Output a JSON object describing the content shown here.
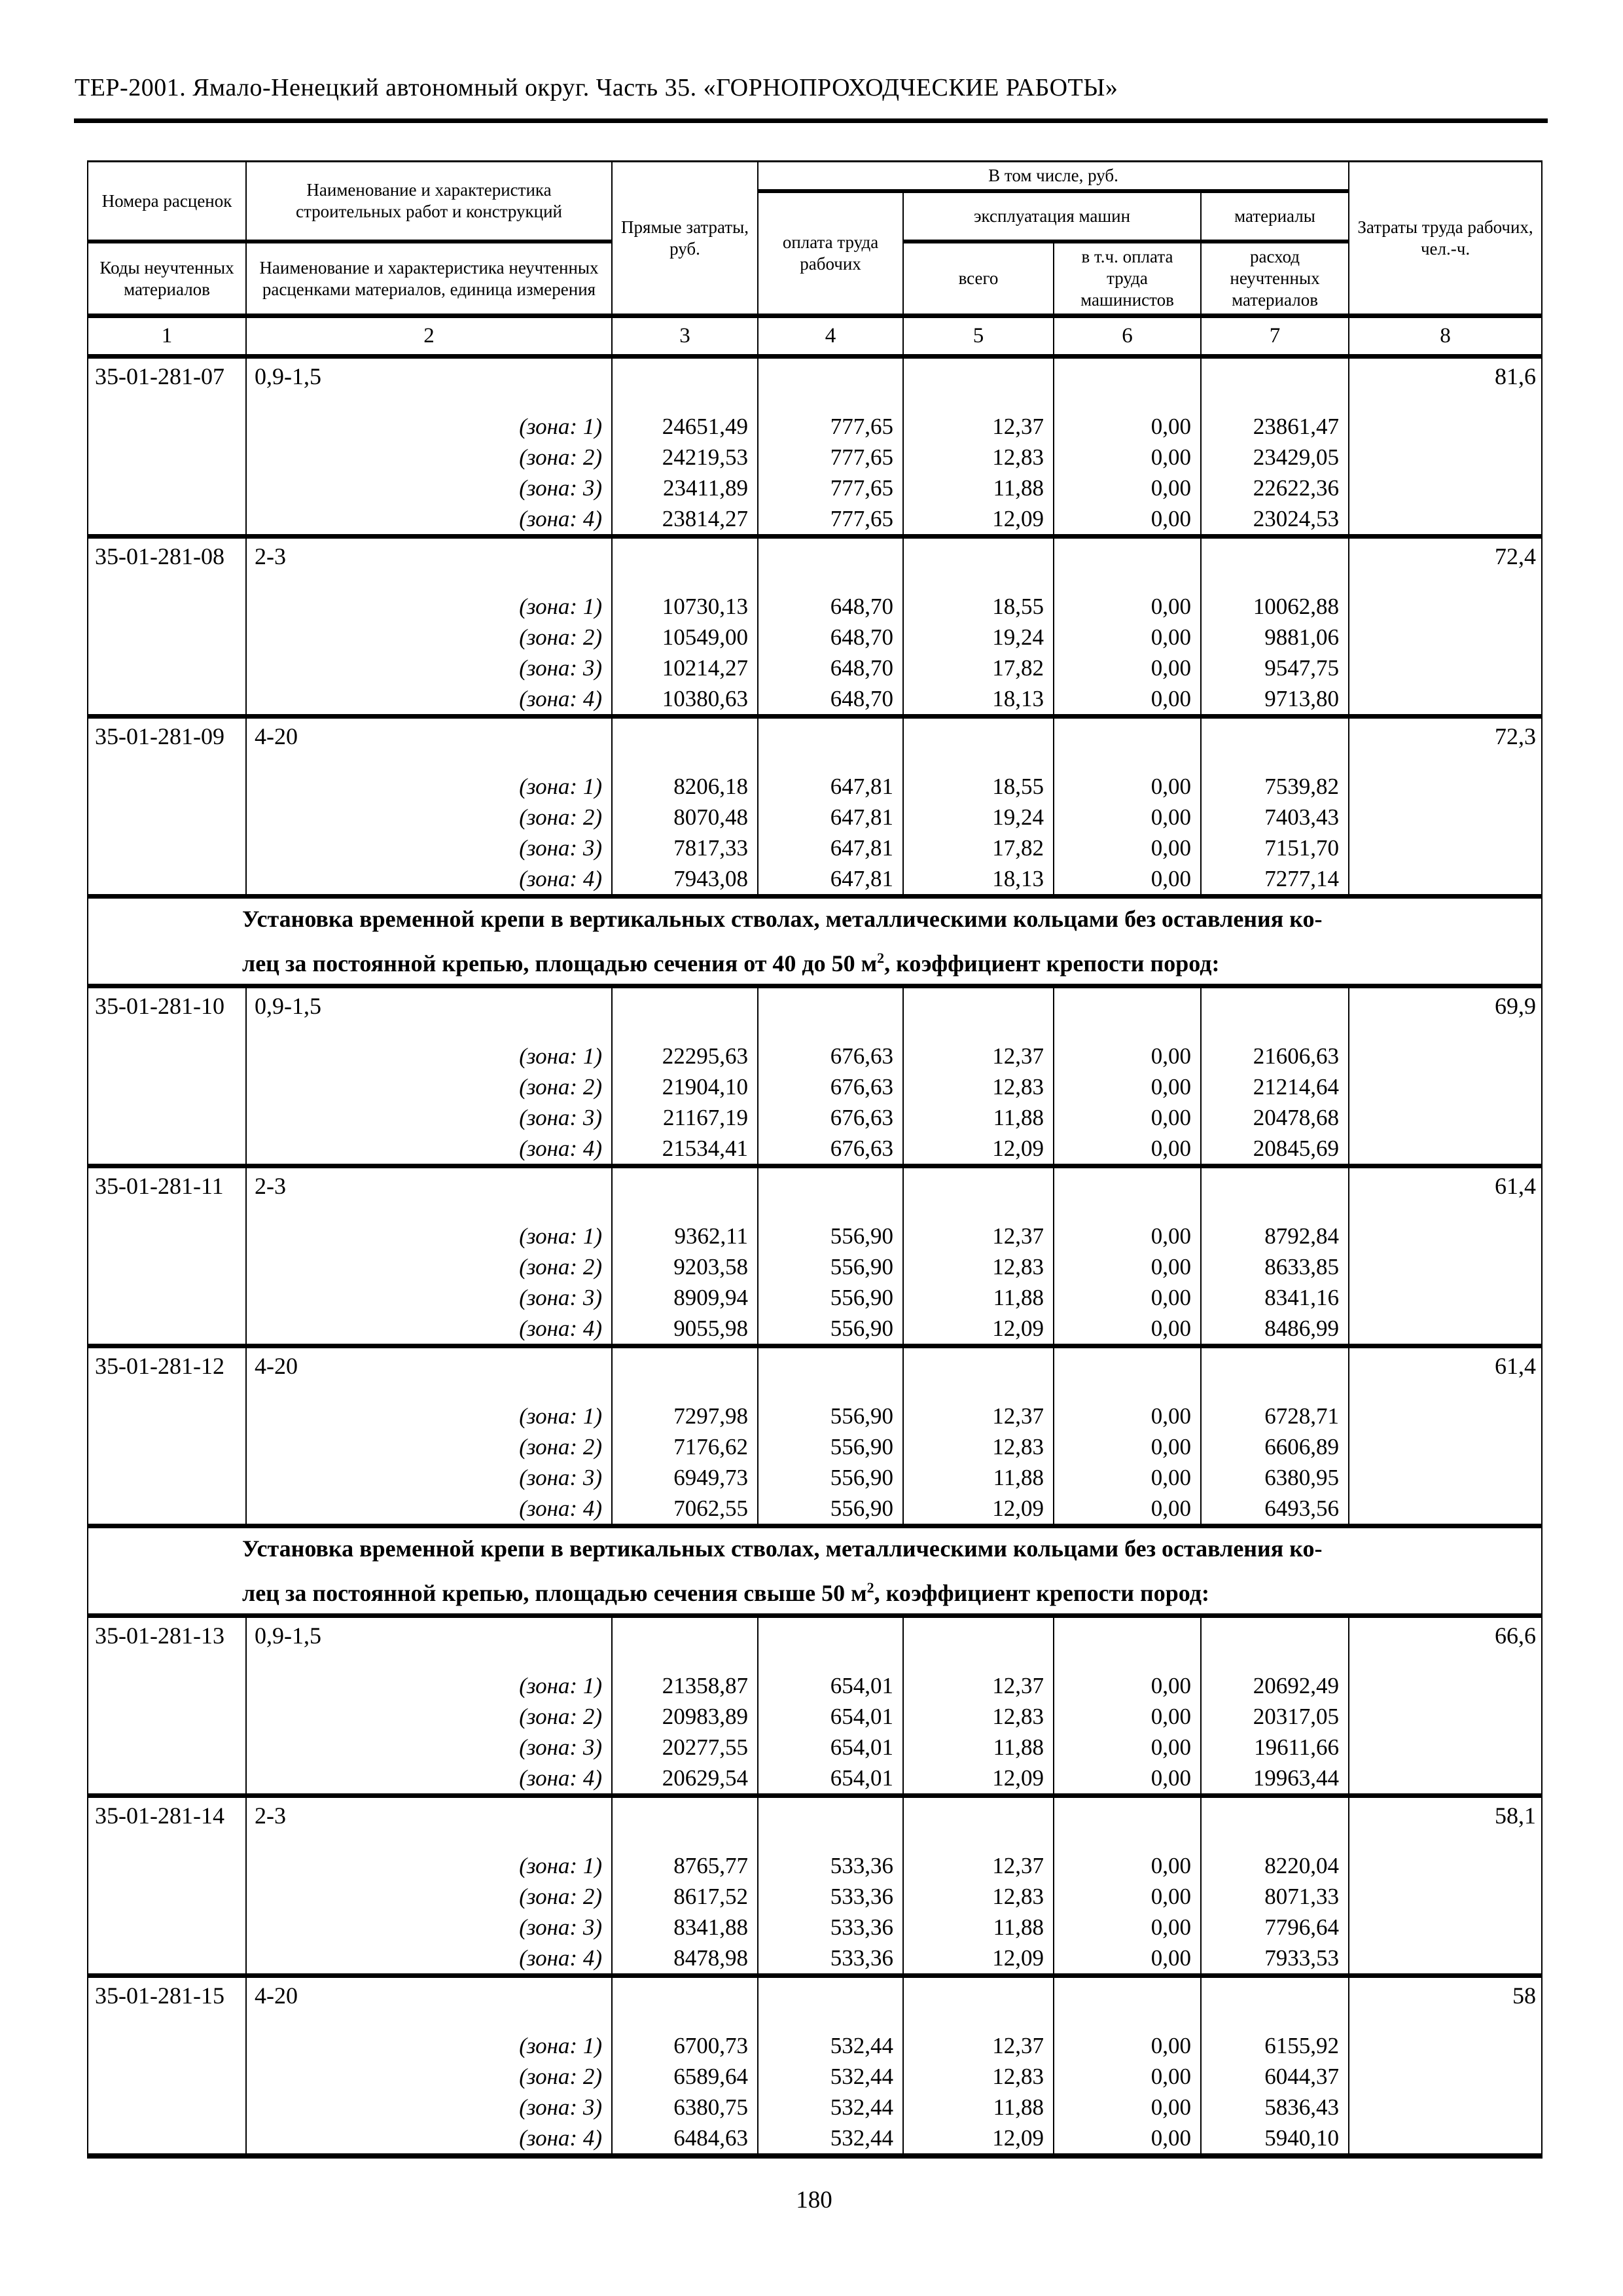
{
  "page": {
    "title": "ТЕР-2001. Ямало-Ненецкий автономный округ. Часть 35. «ГОРНОПРОХОДЧЕСКИЕ РАБОТЫ»",
    "page_number": "180"
  },
  "table": {
    "header": {
      "rates_numbers": "Номера расценок",
      "codes_materials": "Коды неучтенных материалов",
      "works_name": "Наименование и характеристика строительных работ и конструкций",
      "materials_name": "Наименование и характеристика неучтенных расценками материалов, единица измерения",
      "direct_costs": "Прямые затраты, руб.",
      "including": "В том числе, руб.",
      "workers_pay": "оплата труда рабочих",
      "machines": "эксплуатация машин",
      "machines_total": "всего",
      "machinists_pay": "в т.ч. оплата труда машинистов",
      "materials": "материалы",
      "materials_consumption": "расход неучтенных материалов",
      "labor_costs": "Затраты труда рабочих, чел.-ч.",
      "column_numbers": [
        "1",
        "2",
        "3",
        "4",
        "5",
        "6",
        "7",
        "8"
      ]
    },
    "body": [
      {
        "type": "group",
        "code": "35-01-281-07",
        "characteristic": "0,9-1,5",
        "labor": "81,6",
        "zones": [
          {
            "label": "(зона: 1)",
            "values": [
              "24651,49",
              "777,65",
              "12,37",
              "0,00",
              "23861,47"
            ]
          },
          {
            "label": "(зона: 2)",
            "values": [
              "24219,53",
              "777,65",
              "12,83",
              "0,00",
              "23429,05"
            ]
          },
          {
            "label": "(зона: 3)",
            "values": [
              "23411,89",
              "777,65",
              "11,88",
              "0,00",
              "22622,36"
            ]
          },
          {
            "label": "(зона: 4)",
            "values": [
              "23814,27",
              "777,65",
              "12,09",
              "0,00",
              "23024,53"
            ]
          }
        ]
      },
      {
        "type": "group",
        "code": "35-01-281-08",
        "characteristic": "2-3",
        "labor": "72,4",
        "zones": [
          {
            "label": "(зона: 1)",
            "values": [
              "10730,13",
              "648,70",
              "18,55",
              "0,00",
              "10062,88"
            ]
          },
          {
            "label": "(зона: 2)",
            "values": [
              "10549,00",
              "648,70",
              "19,24",
              "0,00",
              "9881,06"
            ]
          },
          {
            "label": "(зона: 3)",
            "values": [
              "10214,27",
              "648,70",
              "17,82",
              "0,00",
              "9547,75"
            ]
          },
          {
            "label": "(зона: 4)",
            "values": [
              "10380,63",
              "648,70",
              "18,13",
              "0,00",
              "9713,80"
            ]
          }
        ]
      },
      {
        "type": "group",
        "code": "35-01-281-09",
        "characteristic": "4-20",
        "labor": "72,3",
        "zones": [
          {
            "label": "(зона: 1)",
            "values": [
              "8206,18",
              "647,81",
              "18,55",
              "0,00",
              "7539,82"
            ]
          },
          {
            "label": "(зона: 2)",
            "values": [
              "8070,48",
              "647,81",
              "19,24",
              "0,00",
              "7403,43"
            ]
          },
          {
            "label": "(зона: 3)",
            "values": [
              "7817,33",
              "647,81",
              "17,82",
              "0,00",
              "7151,70"
            ]
          },
          {
            "label": "(зона: 4)",
            "values": [
              "7943,08",
              "647,81",
              "18,13",
              "0,00",
              "7277,14"
            ]
          }
        ]
      },
      {
        "type": "section",
        "line1": "Установка временной крепи в вертикальных стволах, металлическими кольцами без оставления ко-",
        "line2": "лец за постоянной крепью, площадью сечения от 40 до 50 м",
        "line2_sup": "2",
        "line2_tail": ", коэффициент крепости пород:"
      },
      {
        "type": "group",
        "code": "35-01-281-10",
        "characteristic": "0,9-1,5",
        "labor": "69,9",
        "zones": [
          {
            "label": "(зона: 1)",
            "values": [
              "22295,63",
              "676,63",
              "12,37",
              "0,00",
              "21606,63"
            ]
          },
          {
            "label": "(зона: 2)",
            "values": [
              "21904,10",
              "676,63",
              "12,83",
              "0,00",
              "21214,64"
            ]
          },
          {
            "label": "(зона: 3)",
            "values": [
              "21167,19",
              "676,63",
              "11,88",
              "0,00",
              "20478,68"
            ]
          },
          {
            "label": "(зона: 4)",
            "values": [
              "21534,41",
              "676,63",
              "12,09",
              "0,00",
              "20845,69"
            ]
          }
        ]
      },
      {
        "type": "group",
        "code": "35-01-281-11",
        "characteristic": "2-3",
        "labor": "61,4",
        "zones": [
          {
            "label": "(зона: 1)",
            "values": [
              "9362,11",
              "556,90",
              "12,37",
              "0,00",
              "8792,84"
            ]
          },
          {
            "label": "(зона: 2)",
            "values": [
              "9203,58",
              "556,90",
              "12,83",
              "0,00",
              "8633,85"
            ]
          },
          {
            "label": "(зона: 3)",
            "values": [
              "8909,94",
              "556,90",
              "11,88",
              "0,00",
              "8341,16"
            ]
          },
          {
            "label": "(зона: 4)",
            "values": [
              "9055,98",
              "556,90",
              "12,09",
              "0,00",
              "8486,99"
            ]
          }
        ]
      },
      {
        "type": "group",
        "code": "35-01-281-12",
        "characteristic": "4-20",
        "labor": "61,4",
        "zones": [
          {
            "label": "(зона: 1)",
            "values": [
              "7297,98",
              "556,90",
              "12,37",
              "0,00",
              "6728,71"
            ]
          },
          {
            "label": "(зона: 2)",
            "values": [
              "7176,62",
              "556,90",
              "12,83",
              "0,00",
              "6606,89"
            ]
          },
          {
            "label": "(зона: 3)",
            "values": [
              "6949,73",
              "556,90",
              "11,88",
              "0,00",
              "6380,95"
            ]
          },
          {
            "label": "(зона: 4)",
            "values": [
              "7062,55",
              "556,90",
              "12,09",
              "0,00",
              "6493,56"
            ]
          }
        ]
      },
      {
        "type": "section",
        "line1": "Установка временной крепи в вертикальных стволах, металлическими кольцами без оставления ко-",
        "line2": "лец за постоянной крепью, площадью сечения свыше 50 м",
        "line2_sup": "2",
        "line2_tail": ", коэффициент крепости пород:"
      },
      {
        "type": "group",
        "code": "35-01-281-13",
        "characteristic": "0,9-1,5",
        "labor": "66,6",
        "zones": [
          {
            "label": "(зона: 1)",
            "values": [
              "21358,87",
              "654,01",
              "12,37",
              "0,00",
              "20692,49"
            ]
          },
          {
            "label": "(зона: 2)",
            "values": [
              "20983,89",
              "654,01",
              "12,83",
              "0,00",
              "20317,05"
            ]
          },
          {
            "label": "(зона: 3)",
            "values": [
              "20277,55",
              "654,01",
              "11,88",
              "0,00",
              "19611,66"
            ]
          },
          {
            "label": "(зона: 4)",
            "values": [
              "20629,54",
              "654,01",
              "12,09",
              "0,00",
              "19963,44"
            ]
          }
        ]
      },
      {
        "type": "group",
        "code": "35-01-281-14",
        "characteristic": "2-3",
        "labor": "58,1",
        "zones": [
          {
            "label": "(зона: 1)",
            "values": [
              "8765,77",
              "533,36",
              "12,37",
              "0,00",
              "8220,04"
            ]
          },
          {
            "label": "(зона: 2)",
            "values": [
              "8617,52",
              "533,36",
              "12,83",
              "0,00",
              "8071,33"
            ]
          },
          {
            "label": "(зона: 3)",
            "values": [
              "8341,88",
              "533,36",
              "11,88",
              "0,00",
              "7796,64"
            ]
          },
          {
            "label": "(зона: 4)",
            "values": [
              "8478,98",
              "533,36",
              "12,09",
              "0,00",
              "7933,53"
            ]
          }
        ]
      },
      {
        "type": "group",
        "code": "35-01-281-15",
        "characteristic": "4-20",
        "labor": "58",
        "zones": [
          {
            "label": "(зона: 1)",
            "values": [
              "6700,73",
              "532,44",
              "12,37",
              "0,00",
              "6155,92"
            ]
          },
          {
            "label": "(зона: 2)",
            "values": [
              "6589,64",
              "532,44",
              "12,83",
              "0,00",
              "6044,37"
            ]
          },
          {
            "label": "(зона: 3)",
            "values": [
              "6380,75",
              "532,44",
              "11,88",
              "0,00",
              "5836,43"
            ]
          },
          {
            "label": "(зона: 4)",
            "values": [
              "6484,63",
              "532,44",
              "12,09",
              "0,00",
              "5940,10"
            ]
          }
        ]
      }
    ]
  }
}
